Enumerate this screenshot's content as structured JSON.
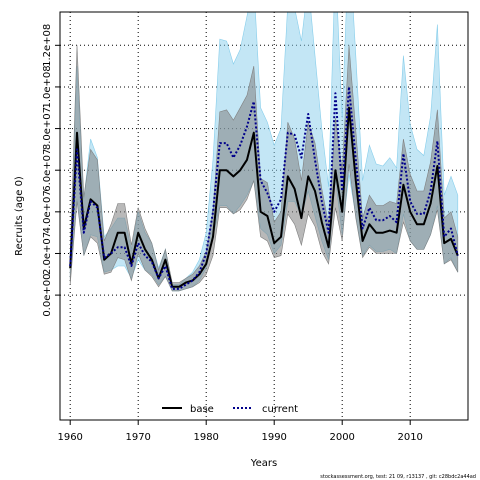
{
  "footnote": "stockassessment.org, test: 21 09, r13137 , git: c28bdc2a44ad",
  "chart_data": {
    "type": "line",
    "xlabel": "Years",
    "ylabel": "Recruits (age 0)",
    "xlim": [
      1958.5,
      2018.5
    ],
    "ylim": [
      -60000000.0,
      136000000.0
    ],
    "xticks": [
      1960,
      1970,
      1980,
      1990,
      2000,
      2010
    ],
    "xtick_labels": [
      "1960",
      "1970",
      "1980",
      "1990",
      "2000",
      "2010"
    ],
    "yticks": [
      0,
      20000000.0,
      40000000.0,
      60000000.0,
      80000000.0,
      100000000.0,
      120000000.0
    ],
    "ytick_labels": [
      "0.0e+00",
      "2.0e+07",
      "4.0e+07",
      "6.0e+07",
      "8.0e+07",
      "1.0e+08",
      "1.2e+08"
    ],
    "grid": true,
    "legend": {
      "position": "bottom-center",
      "entries": [
        "base",
        "current"
      ]
    },
    "colors": {
      "base_line": "#000000",
      "base_band": "#808080",
      "current_line": "#00008b",
      "current_band": "#87ceeb"
    },
    "x": [
      1960,
      1961,
      1962,
      1963,
      1964,
      1965,
      1966,
      1967,
      1968,
      1969,
      1970,
      1971,
      1972,
      1973,
      1974,
      1975,
      1976,
      1977,
      1978,
      1979,
      1980,
      1981,
      1982,
      1983,
      1984,
      1985,
      1986,
      1987,
      1988,
      1989,
      1990,
      1991,
      1992,
      1993,
      1994,
      1995,
      1996,
      1997,
      1998,
      1999,
      2000,
      2001,
      2002,
      2003,
      2004,
      2005,
      2006,
      2007,
      2008,
      2009,
      2010,
      2011,
      2012,
      2013,
      2014,
      2015,
      2016,
      2017
    ],
    "series": [
      {
        "name": "base",
        "values": [
          13000000.0,
          78000000.0,
          32000000.0,
          46000000.0,
          43000000.0,
          17000000.0,
          20000000.0,
          30000000.0,
          30000000.0,
          15000000.0,
          30000000.0,
          22000000.0,
          17000000.0,
          8000000.0,
          17000000.0,
          4000000.0,
          4000000.0,
          6000000.0,
          7000000.0,
          10000000.0,
          15000000.0,
          28000000.0,
          60000000.0,
          60000000.0,
          57000000.0,
          60000000.0,
          65000000.0,
          78000000.0,
          40000000.0,
          38000000.0,
          25000000.0,
          28000000.0,
          57000000.0,
          51000000.0,
          37000000.0,
          57000000.0,
          50000000.0,
          35000000.0,
          23000000.0,
          60000000.0,
          40000000.0,
          90000000.0,
          55000000.0,
          26000000.0,
          34000000.0,
          30000000.0,
          30000000.0,
          31000000.0,
          30000000.0,
          53000000.0,
          40000000.0,
          34000000.0,
          34000000.0,
          44000000.0,
          62000000.0,
          25000000.0,
          27000000.0,
          19000000.0
        ],
        "lower": [
          5000000.0,
          45000000.0,
          19000000.0,
          28000000.0,
          25000000.0,
          10000000.0,
          11000000.0,
          18000000.0,
          17000000.0,
          7000000.0,
          20000000.0,
          12000000.0,
          9000000.0,
          4000000.0,
          9000000.0,
          2000000.0,
          2000000.0,
          3000000.0,
          4000000.0,
          6000000.0,
          10000000.0,
          19000000.0,
          42000000.0,
          42000000.0,
          39000000.0,
          41000000.0,
          46000000.0,
          55000000.0,
          28000000.0,
          26000000.0,
          18000000.0,
          19000000.0,
          39000000.0,
          34000000.0,
          24000000.0,
          39000000.0,
          33000000.0,
          21000000.0,
          15000000.0,
          42000000.0,
          26000000.0,
          63000000.0,
          37000000.0,
          18000000.0,
          23000000.0,
          20000000.0,
          20000000.0,
          20000000.0,
          20000000.0,
          35000000.0,
          26000000.0,
          22000000.0,
          22000000.0,
          29000000.0,
          41000000.0,
          15000000.0,
          17000000.0,
          11000000.0
        ],
        "upper": [
          19000000.0,
          120000000.0,
          47000000.0,
          70000000.0,
          65000000.0,
          26000000.0,
          34000000.0,
          44000000.0,
          44000000.0,
          24000000.0,
          42000000.0,
          32000000.0,
          25000000.0,
          12000000.0,
          22000000.0,
          6000000.0,
          6000000.0,
          8000000.0,
          10000000.0,
          14000000.0,
          21000000.0,
          40000000.0,
          88000000.0,
          89000000.0,
          84000000.0,
          90000000.0,
          96000000.0,
          110000000.0,
          56000000.0,
          54000000.0,
          35000000.0,
          40000000.0,
          83000000.0,
          75000000.0,
          55000000.0,
          83000000.0,
          73000000.0,
          51000000.0,
          34000000.0,
          85000000.0,
          60000000.0,
          120000000.0,
          79000000.0,
          37000000.0,
          48000000.0,
          43000000.0,
          43000000.0,
          45000000.0,
          44000000.0,
          75000000.0,
          58000000.0,
          50000000.0,
          50000000.0,
          64000000.0,
          89000000.0,
          37000000.0,
          40000000.0,
          28000000.0
        ]
      },
      {
        "name": "current",
        "values": [
          14000000.0,
          70000000.0,
          30000000.0,
          45000000.0,
          42000000.0,
          18000000.0,
          20000000.0,
          23000000.0,
          23000000.0,
          14000000.0,
          25000000.0,
          19000000.0,
          16000000.0,
          8000000.0,
          14000000.0,
          3000000.0,
          3000000.0,
          5000000.0,
          7000000.0,
          11000000.0,
          20000000.0,
          40000000.0,
          73000000.0,
          73000000.0,
          66000000.0,
          72000000.0,
          81000000.0,
          93000000.0,
          55000000.0,
          49000000.0,
          40000000.0,
          46000000.0,
          78000000.0,
          77000000.0,
          66000000.0,
          87000000.0,
          65000000.0,
          45000000.0,
          30000000.0,
          97000000.0,
          50000000.0,
          100000000.0,
          65000000.0,
          32000000.0,
          42000000.0,
          36000000.0,
          36000000.0,
          38000000.0,
          35000000.0,
          68000000.0,
          45000000.0,
          39000000.0,
          39000000.0,
          50000000.0,
          74000000.0,
          28000000.0,
          32000000.0,
          19000000.0
        ],
        "lower": [
          8000000.0,
          46000000.0,
          19000000.0,
          29000000.0,
          28000000.0,
          11000000.0,
          12000000.0,
          14000000.0,
          14000000.0,
          8000000.0,
          17000000.0,
          12000000.0,
          10000000.0,
          5000000.0,
          9000000.0,
          2000000.0,
          2000000.0,
          3000000.0,
          4000000.0,
          7000000.0,
          13000000.0,
          28000000.0,
          43000000.0,
          43000000.0,
          39000000.0,
          43000000.0,
          48000000.0,
          55000000.0,
          32000000.0,
          29000000.0,
          20000000.0,
          24000000.0,
          45000000.0,
          45000000.0,
          38000000.0,
          50000000.0,
          38000000.0,
          26000000.0,
          17000000.0,
          56000000.0,
          29000000.0,
          58000000.0,
          38000000.0,
          19000000.0,
          24000000.0,
          21000000.0,
          21000000.0,
          22000000.0,
          20000000.0,
          39000000.0,
          26000000.0,
          22000000.0,
          22000000.0,
          29000000.0,
          43000000.0,
          15000000.0,
          18000000.0,
          11000000.0
        ],
        "upper": [
          21000000.0,
          110000000.0,
          46000000.0,
          75000000.0,
          66000000.0,
          28000000.0,
          32000000.0,
          37000000.0,
          37000000.0,
          22000000.0,
          40000000.0,
          30000000.0,
          25000000.0,
          13000000.0,
          22000000.0,
          5000000.0,
          5000000.0,
          8000000.0,
          11000000.0,
          17000000.0,
          30000000.0,
          65000000.0,
          123000000.0,
          122000000.0,
          111000000.0,
          118000000.0,
          134000000.0,
          150000000.0,
          90000000.0,
          83000000.0,
          72000000.0,
          80000000.0,
          140000000.0,
          138000000.0,
          122000000.0,
          150000000.0,
          115000000.0,
          80000000.0,
          52000000.0,
          160000000.0,
          85000000.0,
          172000000.0,
          115000000.0,
          55000000.0,
          72000000.0,
          63000000.0,
          62000000.0,
          66000000.0,
          61000000.0,
          115000000.0,
          82000000.0,
          70000000.0,
          67000000.0,
          86000000.0,
          130000000.0,
          48000000.0,
          57000000.0,
          48000000.0
        ]
      }
    ]
  }
}
